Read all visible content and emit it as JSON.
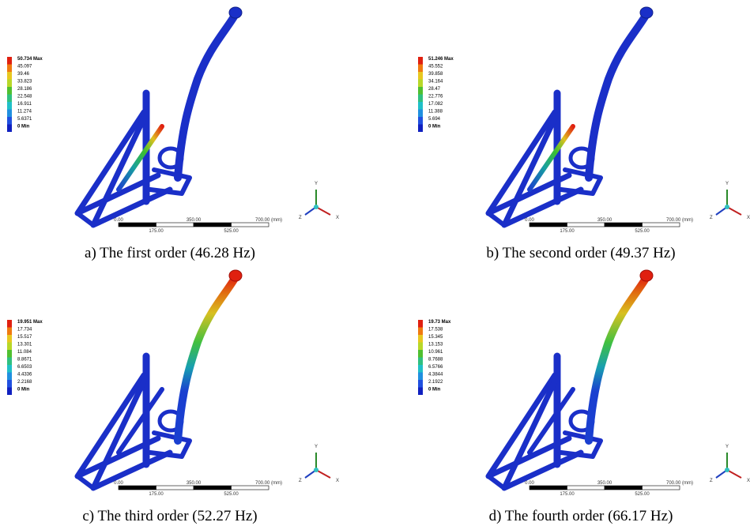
{
  "panels": [
    {
      "caption": "a) The first order (46.28 Hz)",
      "legend": [
        "50.734 Max",
        "45.097",
        "39.46",
        "33.823",
        "28.186",
        "22.548",
        "16.911",
        "11.274",
        "5.6371",
        "0 Min"
      ]
    },
    {
      "caption": "b) The second order (49.37 Hz)",
      "legend": [
        "51.246 Max",
        "45.552",
        "39.858",
        "34.164",
        "28.47",
        "22.776",
        "17.082",
        "11.388",
        "5.694",
        "0 Min"
      ]
    },
    {
      "caption": "c) The third order (52.27 Hz)",
      "legend": [
        "19.951 Max",
        "17.734",
        "15.517",
        "13.301",
        "11.084",
        "8.8671",
        "6.6503",
        "4.4336",
        "2.2168",
        "0 Min"
      ]
    },
    {
      "caption": "d) The fourth order (66.17 Hz)",
      "legend": [
        "19.73 Max",
        "17.538",
        "15.345",
        "13.153",
        "10.961",
        "8.7688",
        "6.5766",
        "4.3844",
        "2.1922",
        "0 Min"
      ]
    }
  ],
  "scale_bar": {
    "top": [
      "0.00",
      "350.00",
      "700.00 (mm)"
    ],
    "bottom": [
      "175.00",
      "525.00"
    ]
  },
  "triad": [
    "Y",
    "X",
    "Z"
  ]
}
